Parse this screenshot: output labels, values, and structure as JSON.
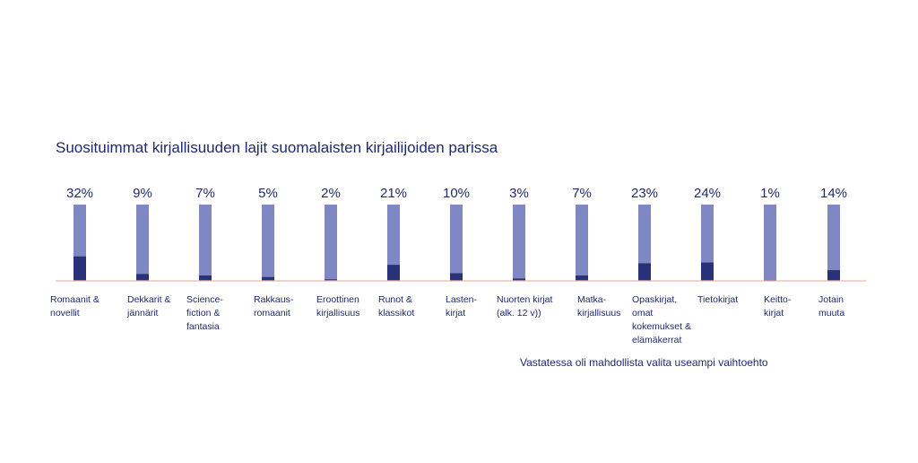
{
  "chart_data": {
    "type": "bar",
    "title": "Suosituimmat kirjallisuuden lajit suomalaisten kirjailijoiden parissa",
    "note": "Vastatessa oli mahdollista valita useampi vaihtoehto",
    "value_format": "percent",
    "ylim": [
      0,
      100
    ],
    "colors": {
      "bar_background": "#8088c4",
      "bar_value": "#283279",
      "baseline": "#e8b9ad",
      "text": "#1f2a6b"
    },
    "categories": [
      [
        "Romaanit &",
        "novellit"
      ],
      [
        "Dekkarit &",
        "jännärit"
      ],
      [
        "Science-",
        "fiction &",
        "fantasia"
      ],
      [
        "Rakkaus-",
        "romaanit"
      ],
      [
        "Eroottinen",
        "kirjallisuus"
      ],
      [
        "Runot &",
        "klassikot"
      ],
      [
        "Lasten-",
        "kirjat"
      ],
      [
        "Nuorten kirjat",
        "(alk. 12 v))"
      ],
      [
        "Matka-",
        "kirjallisuus"
      ],
      [
        "Opaskirjat,",
        "omat",
        "kokemukset &",
        "elämäkerrat"
      ],
      [
        "Tietokirjat"
      ],
      [
        "Keitto-",
        "kirjat"
      ],
      [
        "Jotain",
        "muuta"
      ]
    ],
    "value_labels": [
      "32%",
      "9%",
      "7%",
      "5%",
      "2%",
      "21%",
      "10%",
      "3%",
      "7%",
      "23%",
      "24%",
      "1%",
      "14%"
    ],
    "values": [
      32,
      9,
      7,
      5,
      2,
      21,
      10,
      3,
      7,
      23,
      24,
      1,
      14
    ]
  }
}
